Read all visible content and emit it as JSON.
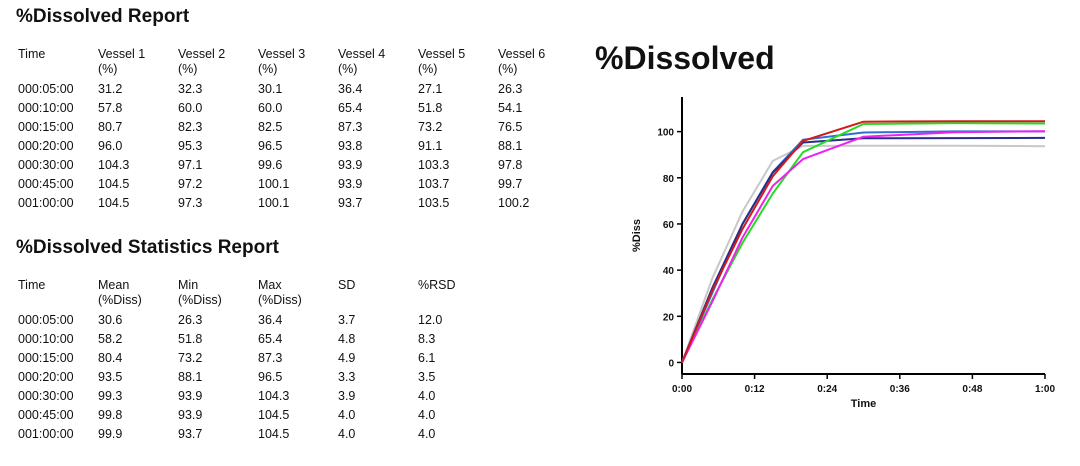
{
  "report": {
    "title": "%Dissolved Report",
    "headers": [
      [
        "Time",
        ""
      ],
      [
        "Vessel 1",
        "(%)"
      ],
      [
        "Vessel 2",
        "(%)"
      ],
      [
        "Vessel 3",
        "(%)"
      ],
      [
        "Vessel 4",
        "(%)"
      ],
      [
        "Vessel 5",
        "(%)"
      ],
      [
        "Vessel 6",
        "(%)"
      ]
    ],
    "rows": [
      [
        "000:05:00",
        "31.2",
        "32.3",
        "30.1",
        "36.4",
        "27.1",
        "26.3"
      ],
      [
        "000:10:00",
        "57.8",
        "60.0",
        "60.0",
        "65.4",
        "51.8",
        "54.1"
      ],
      [
        "000:15:00",
        "80.7",
        "82.3",
        "82.5",
        "87.3",
        "73.2",
        "76.5"
      ],
      [
        "000:20:00",
        "96.0",
        "95.3",
        "96.5",
        "93.8",
        "91.1",
        "88.1"
      ],
      [
        "000:30:00",
        "104.3",
        "97.1",
        "99.6",
        "93.9",
        "103.3",
        "97.8"
      ],
      [
        "000:45:00",
        "104.5",
        "97.2",
        "100.1",
        "93.9",
        "103.7",
        "99.7"
      ],
      [
        "001:00:00",
        "104.5",
        "97.3",
        "100.1",
        "93.7",
        "103.5",
        "100.2"
      ]
    ]
  },
  "stats": {
    "title": "%Dissolved Statistics Report",
    "headers": [
      [
        "Time",
        ""
      ],
      [
        "Mean",
        "(%Diss)"
      ],
      [
        "Min",
        "(%Diss)"
      ],
      [
        "Max",
        "(%Diss)"
      ],
      [
        "SD",
        ""
      ],
      [
        "%RSD",
        ""
      ]
    ],
    "rows": [
      [
        "000:05:00",
        "30.6",
        "26.3",
        "36.4",
        "3.7",
        "12.0"
      ],
      [
        "000:10:00",
        "58.2",
        "51.8",
        "65.4",
        "4.8",
        "8.3"
      ],
      [
        "000:15:00",
        "80.4",
        "73.2",
        "87.3",
        "4.9",
        "6.1"
      ],
      [
        "000:20:00",
        "93.5",
        "88.1",
        "96.5",
        "3.3",
        "3.5"
      ],
      [
        "000:30:00",
        "99.3",
        "93.9",
        "104.3",
        "3.9",
        "4.0"
      ],
      [
        "000:45:00",
        "99.8",
        "93.9",
        "104.5",
        "4.0",
        "4.0"
      ],
      [
        "001:00:00",
        "99.9",
        "93.7",
        "104.5",
        "4.0",
        "4.0"
      ]
    ]
  },
  "chart_data": {
    "type": "line",
    "title": "%Dissolved",
    "xlabel": "Time",
    "ylabel": "%Diss",
    "x": [
      0,
      5,
      10,
      15,
      20,
      30,
      45,
      60
    ],
    "xlim": [
      0,
      60
    ],
    "ylim": [
      -5,
      115
    ],
    "xticks": [
      0,
      12,
      24,
      36,
      48,
      60
    ],
    "xtick_labels": [
      "0:00",
      "0:12",
      "0:24",
      "0:36",
      "0:48",
      "1:00"
    ],
    "yticks": [
      0,
      20,
      40,
      60,
      80,
      100
    ],
    "ytick_labels": [
      "0",
      "20",
      "40",
      "60",
      "80",
      "100"
    ],
    "series": [
      {
        "name": "Vessel 1",
        "color": "#d11a1a",
        "values": [
          0,
          31.2,
          57.8,
          80.7,
          96.0,
          104.3,
          104.5,
          104.5
        ]
      },
      {
        "name": "Vessel 2",
        "color": "#2b2b8c",
        "values": [
          0,
          32.3,
          60.0,
          82.3,
          95.3,
          97.1,
          97.2,
          97.3
        ]
      },
      {
        "name": "Vessel 3",
        "color": "#2f6fd6",
        "values": [
          0,
          30.1,
          60.0,
          82.5,
          96.5,
          99.6,
          100.1,
          100.1
        ]
      },
      {
        "name": "Vessel 4",
        "color": "#c8c8c8",
        "values": [
          0,
          36.4,
          65.4,
          87.3,
          93.8,
          93.9,
          93.9,
          93.7
        ]
      },
      {
        "name": "Vessel 5",
        "color": "#22dd22",
        "values": [
          0,
          27.1,
          51.8,
          73.2,
          91.1,
          103.3,
          103.7,
          103.5
        ]
      },
      {
        "name": "Vessel 6",
        "color": "#ee22ee",
        "values": [
          0,
          26.3,
          54.1,
          76.5,
          88.1,
          97.8,
          99.7,
          100.2
        ]
      }
    ]
  }
}
